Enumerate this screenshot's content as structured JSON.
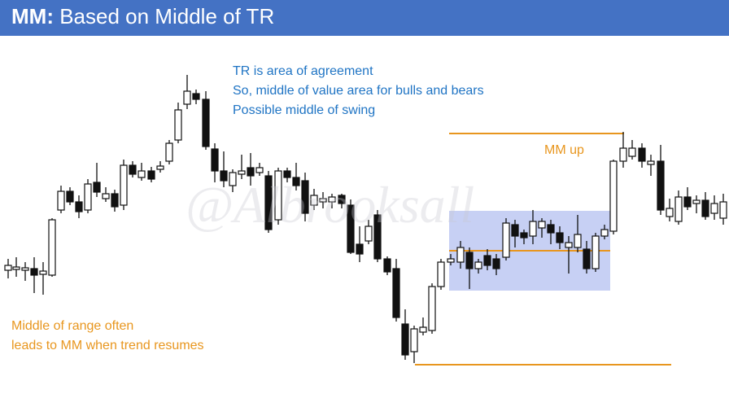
{
  "header": {
    "label": "MM:",
    "title": "Based on Middle of TR"
  },
  "notes": {
    "tr": [
      "TR is area of agreement",
      "So, middle of value area for bulls and bears",
      "Possible middle of swing"
    ],
    "mm_up": "MM up",
    "range": [
      "Middle of range often",
      "leads to MM when trend resumes"
    ]
  },
  "watermark": "@Albrooksall"
}
